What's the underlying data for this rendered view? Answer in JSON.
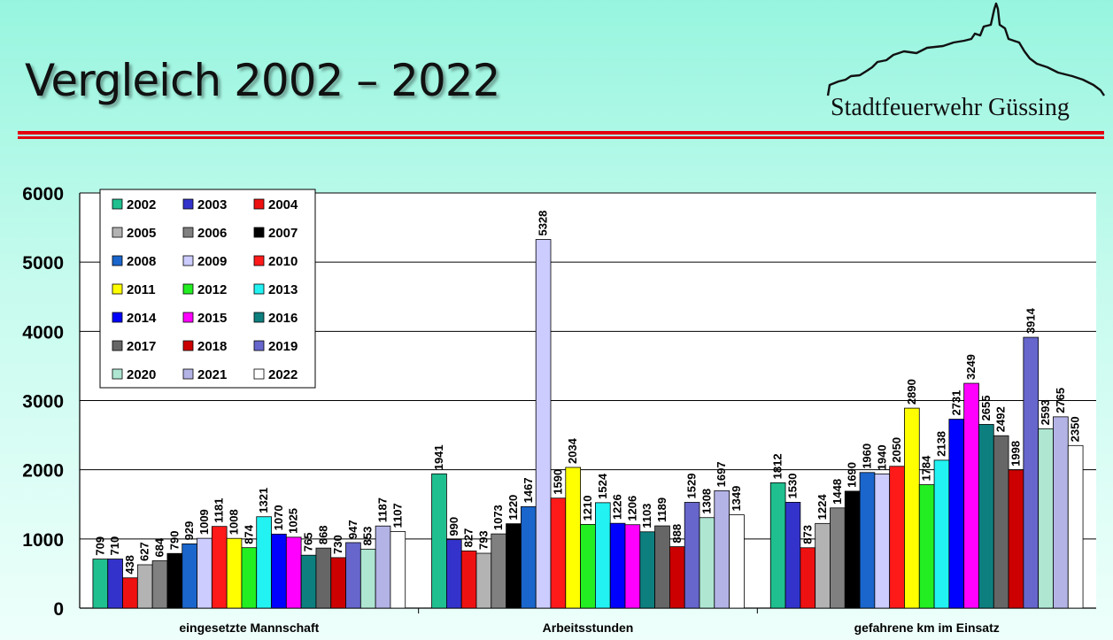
{
  "header": {
    "title": "Vergleich 2002 – 2022",
    "organization": "Stadtfeuerwehr Güssing",
    "logo_icon": "castle-skyline-icon",
    "accent_color": "#e3000f"
  },
  "chart_data": {
    "type": "bar",
    "title": "",
    "xlabel": "",
    "ylabel": "",
    "ylim": [
      0,
      6000
    ],
    "yticks": [
      0,
      1000,
      2000,
      3000,
      4000,
      5000,
      6000
    ],
    "grid": true,
    "legend_position": "top-left",
    "categories": [
      "eingesetzte Mannschaft",
      "Arbeitsstunden",
      "gefahrene km im Einsatz"
    ],
    "series": [
      {
        "name": "2002",
        "color": "#1fbf8f",
        "values": [
          709,
          1941,
          1812
        ]
      },
      {
        "name": "2003",
        "color": "#3333cc",
        "values": [
          710,
          990,
          1530
        ]
      },
      {
        "name": "2004",
        "color": "#ee1111",
        "values": [
          438,
          827,
          873
        ]
      },
      {
        "name": "2005",
        "color": "#b3b3b3",
        "values": [
          627,
          793,
          1224
        ]
      },
      {
        "name": "2006",
        "color": "#808080",
        "values": [
          684,
          1073,
          1448
        ]
      },
      {
        "name": "2007",
        "color": "#000000",
        "values": [
          790,
          1220,
          1690
        ]
      },
      {
        "name": "2008",
        "color": "#1a66cc",
        "values": [
          929,
          1467,
          1960
        ]
      },
      {
        "name": "2009",
        "color": "#ccccff",
        "values": [
          1009,
          5328,
          1940
        ]
      },
      {
        "name": "2010",
        "color": "#ff1a1a",
        "values": [
          1181,
          1590,
          2050
        ]
      },
      {
        "name": "2011",
        "color": "#ffff00",
        "values": [
          1008,
          2034,
          2890
        ]
      },
      {
        "name": "2012",
        "color": "#22ee22",
        "values": [
          874,
          1210,
          1784
        ]
      },
      {
        "name": "2013",
        "color": "#22f2f2",
        "values": [
          1321,
          1524,
          2138
        ]
      },
      {
        "name": "2014",
        "color": "#0000ff",
        "values": [
          1070,
          1226,
          2731
        ]
      },
      {
        "name": "2015",
        "color": "#ff00ff",
        "values": [
          1025,
          1206,
          3249
        ]
      },
      {
        "name": "2016",
        "color": "#0e7f7f",
        "values": [
          765,
          1103,
          2655
        ]
      },
      {
        "name": "2017",
        "color": "#666666",
        "values": [
          868,
          1189,
          2492
        ]
      },
      {
        "name": "2018",
        "color": "#cc0000",
        "values": [
          730,
          888,
          1998
        ]
      },
      {
        "name": "2019",
        "color": "#6666cc",
        "values": [
          947,
          1529,
          3914
        ]
      },
      {
        "name": "2020",
        "color": "#aee6d2",
        "values": [
          853,
          1308,
          2593
        ]
      },
      {
        "name": "2021",
        "color": "#b3b3e6",
        "values": [
          1187,
          1697,
          2765
        ]
      },
      {
        "name": "2022",
        "color": "#ffffff",
        "values": [
          1107,
          1349,
          2350
        ]
      }
    ]
  }
}
